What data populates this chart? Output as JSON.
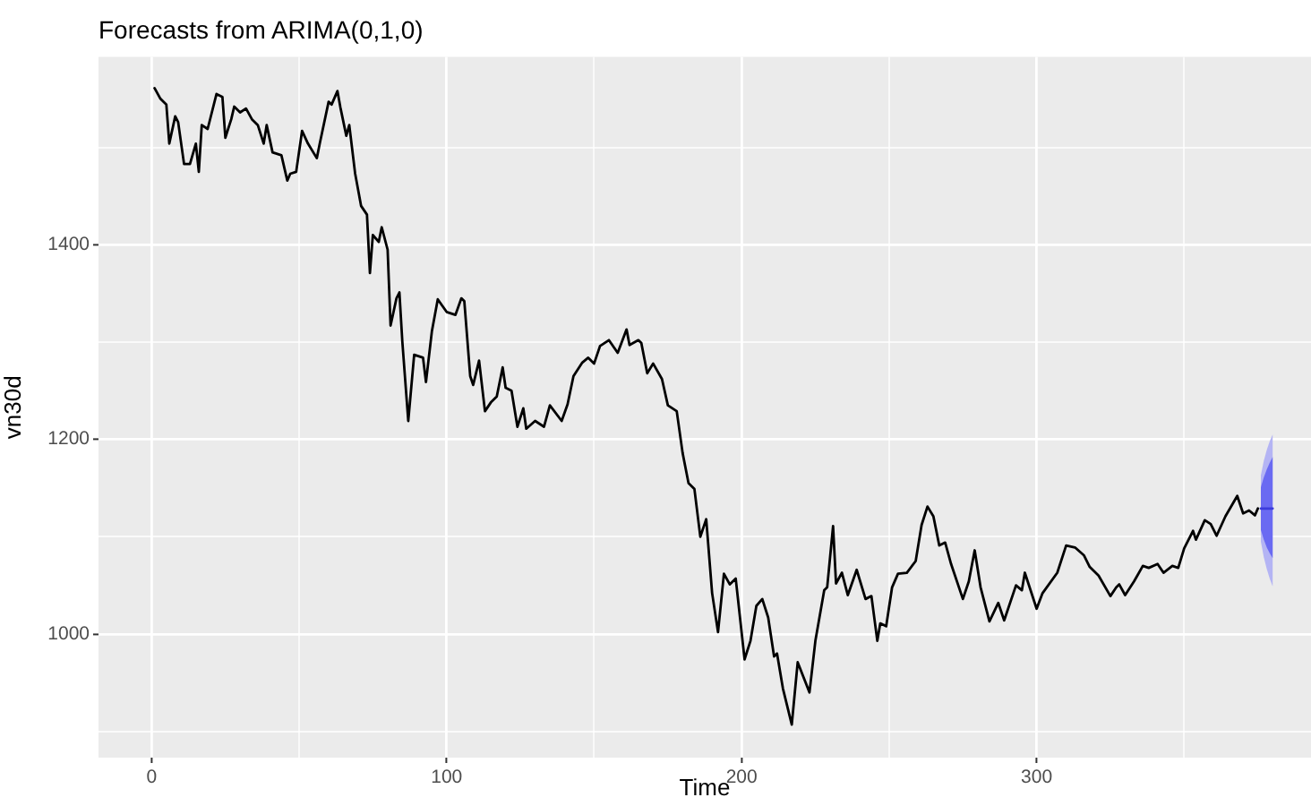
{
  "chart_data": {
    "type": "line",
    "title": "Forecasts from ARIMA(0,1,0)",
    "xlabel": "Time",
    "ylabel": "vn30d",
    "xlim": [
      -18,
      393
    ],
    "ylim": [
      873,
      1593
    ],
    "xticks": [
      0,
      {
        "value": 50,
        "label": null
      },
      100,
      {
        "value": 150,
        "label": null
      },
      200,
      {
        "value": 250,
        "label": null
      },
      300,
      {
        "value": 350,
        "label": null
      }
    ],
    "yticks": [
      {
        "value": 900,
        "label": null
      },
      1000,
      {
        "value": 1100,
        "label": null
      },
      1200,
      {
        "value": 1300,
        "label": null
      },
      1400,
      {
        "value": 1500,
        "label": null
      }
    ],
    "grid": true,
    "series": [
      {
        "color": "#000000",
        "x": [
          1,
          3,
          5,
          6,
          8,
          9,
          11,
          13,
          15,
          16,
          17,
          19,
          22,
          24,
          25,
          27,
          28,
          30,
          32,
          34,
          36,
          38,
          39,
          41,
          44,
          46,
          47,
          49,
          51,
          53,
          56,
          57,
          60,
          61,
          63,
          64,
          66,
          67,
          69,
          71,
          73,
          74,
          75,
          77,
          78,
          80,
          81,
          83,
          84,
          85,
          87,
          89,
          92,
          93,
          95,
          97,
          100,
          103,
          105,
          106,
          108,
          109,
          111,
          113,
          115,
          117,
          119,
          120,
          122,
          124,
          126,
          127,
          130,
          133,
          135,
          139,
          141,
          143,
          146,
          148,
          150,
          152,
          155,
          158,
          161,
          162,
          165,
          166,
          168,
          170,
          173,
          175,
          178,
          180,
          182,
          184,
          186,
          188,
          190,
          192,
          194,
          196,
          198,
          201,
          203,
          205,
          207,
          209,
          211,
          212,
          214,
          217,
          219,
          223,
          225,
          228,
          229,
          231,
          232,
          234,
          236,
          239,
          242,
          244,
          246,
          247,
          249,
          251,
          253,
          256,
          259,
          261,
          263,
          265,
          267,
          269,
          271,
          275,
          277,
          279,
          281,
          284,
          287,
          289,
          293,
          295,
          296,
          300,
          302,
          307,
          310,
          313,
          316,
          318,
          321,
          325,
          327,
          328,
          330,
          333,
          336,
          338,
          341,
          343,
          346,
          348,
          350,
          353,
          354,
          357,
          359,
          361,
          364,
          368,
          370,
          372,
          374,
          375
        ],
        "values": [
          1561,
          1550,
          1544,
          1504,
          1532,
          1526,
          1483,
          1483,
          1504,
          1475,
          1523,
          1519,
          1555,
          1552,
          1510,
          1529,
          1542,
          1536,
          1540,
          1529,
          1523,
          1504,
          1523,
          1495,
          1492,
          1466,
          1473,
          1475,
          1517,
          1504,
          1489,
          1504,
          1547,
          1544,
          1558,
          1541,
          1512,
          1523,
          1473,
          1440,
          1431,
          1371,
          1410,
          1403,
          1418,
          1395,
          1317,
          1345,
          1351,
          1300,
          1219,
          1287,
          1284,
          1259,
          1311,
          1344,
          1331,
          1328,
          1345,
          1342,
          1265,
          1256,
          1281,
          1229,
          1238,
          1244,
          1274,
          1253,
          1250,
          1213,
          1232,
          1211,
          1219,
          1213,
          1235,
          1219,
          1236,
          1265,
          1279,
          1284,
          1278,
          1296,
          1302,
          1289,
          1313,
          1297,
          1302,
          1299,
          1268,
          1278,
          1262,
          1235,
          1229,
          1186,
          1155,
          1149,
          1100,
          1118,
          1042,
          1002,
          1062,
          1051,
          1057,
          974,
          993,
          1029,
          1036,
          1017,
          977,
          980,
          944,
          907,
          971,
          940,
          993,
          1045,
          1048,
          1111,
          1052,
          1063,
          1040,
          1066,
          1036,
          1039,
          993,
          1011,
          1008,
          1048,
          1062,
          1063,
          1075,
          1112,
          1131,
          1121,
          1091,
          1094,
          1072,
          1036,
          1054,
          1086,
          1048,
          1013,
          1032,
          1014,
          1050,
          1045,
          1063,
          1026,
          1042,
          1063,
          1091,
          1089,
          1081,
          1069,
          1060,
          1039,
          1048,
          1051,
          1040,
          1054,
          1070,
          1068,
          1072,
          1063,
          1070,
          1068,
          1088,
          1106,
          1097,
          1117,
          1113,
          1101,
          1121,
          1142,
          1124,
          1127,
          1122,
          1129
        ]
      },
      {
        "color": "#b4b4f4",
        "x": [
          376,
          377,
          378,
          379,
          380
        ],
        "values": [
          null,
          null,
          null,
          null,
          null
        ],
        "lower": [
          1095,
          1079,
          1067,
          1057,
          1049
        ],
        "upper": [
          1163,
          1178,
          1189,
          1198,
          1205
        ]
      },
      {
        "color": "#6a6af2",
        "x": [
          376,
          377,
          378,
          379,
          380
        ],
        "values": [
          null,
          null,
          null,
          null,
          null
        ],
        "lower": [
          1107,
          1097,
          1089,
          1083,
          1078
        ],
        "upper": [
          1151,
          1161,
          1169,
          1176,
          1182
        ]
      },
      {
        "color": "#3c3cdc",
        "x": [
          376,
          377,
          378,
          379,
          380
        ],
        "values": [
          1129,
          1129,
          1129,
          1129,
          1129
        ]
      }
    ]
  }
}
